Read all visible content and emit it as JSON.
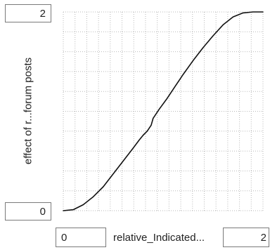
{
  "y_axis": {
    "max_value": "2",
    "min_value": "0",
    "label": "effect of r...forum posts"
  },
  "x_axis": {
    "min_value": "0",
    "max_value": "2",
    "label": "relative_Indicated..."
  },
  "chart_data": {
    "type": "line",
    "title": "",
    "xlabel": "relative_Indicated...",
    "ylabel": "effect of r...forum posts",
    "xlim": [
      0,
      2
    ],
    "ylim": [
      0,
      2
    ],
    "grid": true,
    "series": [
      {
        "values": [
          [
            0.0,
            0.0
          ],
          [
            0.1,
            0.01
          ],
          [
            0.2,
            0.06
          ],
          [
            0.3,
            0.14
          ],
          [
            0.4,
            0.24
          ],
          [
            0.5,
            0.37
          ],
          [
            0.6,
            0.5
          ],
          [
            0.7,
            0.63
          ],
          [
            0.76,
            0.71
          ],
          [
            0.8,
            0.76
          ],
          [
            0.84,
            0.8
          ],
          [
            0.88,
            0.86
          ],
          [
            0.9,
            0.93
          ],
          [
            0.96,
            1.02
          ],
          [
            1.04,
            1.13
          ],
          [
            1.12,
            1.25
          ],
          [
            1.2,
            1.37
          ],
          [
            1.3,
            1.51
          ],
          [
            1.4,
            1.64
          ],
          [
            1.5,
            1.76
          ],
          [
            1.6,
            1.87
          ],
          [
            1.7,
            1.95
          ],
          [
            1.8,
            1.99
          ],
          [
            1.9,
            2.0
          ],
          [
            2.0,
            2.0
          ]
        ]
      }
    ],
    "colors": {
      "line": "#111111",
      "grid": "#b9b9b9"
    }
  }
}
